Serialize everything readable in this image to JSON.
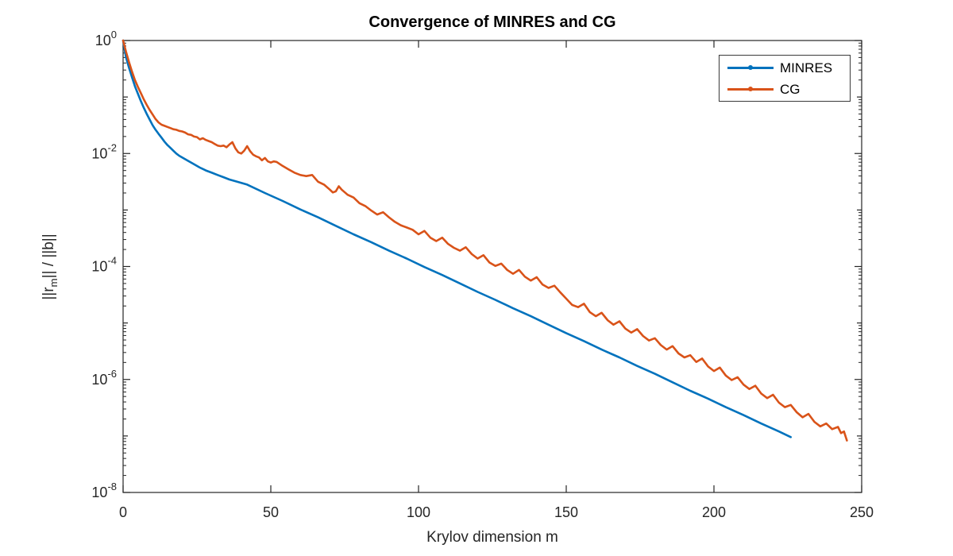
{
  "chart_data": {
    "type": "line",
    "title": "Convergence of MINRES and CG",
    "xlabel": "Krylov dimension m",
    "ylabel_parts": {
      "pre": "||r",
      "sub": "m",
      "post": "|| / ||b||"
    },
    "x_axis": {
      "min": 0,
      "max": 250,
      "ticks": [
        0,
        50,
        100,
        150,
        200,
        250
      ]
    },
    "y_axis": {
      "scale": "log10",
      "min_exp": -8,
      "max_exp": 0,
      "tick_exponents": [
        0,
        -2,
        -4,
        -6,
        -8
      ],
      "minor_ticks": true
    },
    "grid": false,
    "axis_color": "#262626",
    "background": "#ffffff",
    "legend": {
      "position": "northeast",
      "entries": [
        "MINRES",
        "CG"
      ]
    },
    "series": [
      {
        "name": "MINRES",
        "color": "#0072BD",
        "points_log10": [
          [
            0,
            0.0
          ],
          [
            1,
            -0.3
          ],
          [
            2,
            -0.48
          ],
          [
            3,
            -0.65
          ],
          [
            4,
            -0.81
          ],
          [
            5,
            -0.94
          ],
          [
            6,
            -1.07
          ],
          [
            7,
            -1.19
          ],
          [
            8,
            -1.3
          ],
          [
            9,
            -1.4
          ],
          [
            10,
            -1.5
          ],
          [
            11,
            -1.58
          ],
          [
            12,
            -1.65
          ],
          [
            13,
            -1.72
          ],
          [
            14,
            -1.79
          ],
          [
            15,
            -1.85
          ],
          [
            16,
            -1.9
          ],
          [
            17,
            -1.95
          ],
          [
            18,
            -2.0
          ],
          [
            19,
            -2.04
          ],
          [
            20,
            -2.07
          ],
          [
            22,
            -2.13
          ],
          [
            24,
            -2.19
          ],
          [
            26,
            -2.25
          ],
          [
            28,
            -2.3
          ],
          [
            30,
            -2.34
          ],
          [
            32,
            -2.38
          ],
          [
            34,
            -2.42
          ],
          [
            36,
            -2.46
          ],
          [
            38,
            -2.49
          ],
          [
            40,
            -2.52
          ],
          [
            42,
            -2.55
          ],
          [
            48,
            -2.7
          ],
          [
            54,
            -2.84
          ],
          [
            60,
            -2.99
          ],
          [
            66,
            -3.13
          ],
          [
            72,
            -3.28
          ],
          [
            78,
            -3.43
          ],
          [
            84,
            -3.57
          ],
          [
            90,
            -3.72
          ],
          [
            96,
            -3.86
          ],
          [
            102,
            -4.01
          ],
          [
            108,
            -4.15
          ],
          [
            114,
            -4.3
          ],
          [
            120,
            -4.45
          ],
          [
            126,
            -4.59
          ],
          [
            132,
            -4.74
          ],
          [
            138,
            -4.88
          ],
          [
            144,
            -5.03
          ],
          [
            150,
            -5.18
          ],
          [
            156,
            -5.32
          ],
          [
            162,
            -5.47
          ],
          [
            168,
            -5.61
          ],
          [
            174,
            -5.76
          ],
          [
            180,
            -5.9
          ],
          [
            186,
            -6.05
          ],
          [
            192,
            -6.2
          ],
          [
            198,
            -6.34
          ],
          [
            204,
            -6.49
          ],
          [
            210,
            -6.63
          ],
          [
            216,
            -6.78
          ],
          [
            222,
            -6.92
          ],
          [
            226,
            -7.02
          ]
        ]
      },
      {
        "name": "CG",
        "color": "#D95319",
        "points_log10": [
          [
            0,
            0.0
          ],
          [
            1,
            -0.2
          ],
          [
            2,
            -0.38
          ],
          [
            3,
            -0.55
          ],
          [
            4,
            -0.7
          ],
          [
            5,
            -0.82
          ],
          [
            6,
            -0.93
          ],
          [
            7,
            -1.04
          ],
          [
            8,
            -1.14
          ],
          [
            9,
            -1.23
          ],
          [
            10,
            -1.31
          ],
          [
            11,
            -1.39
          ],
          [
            12,
            -1.45
          ],
          [
            13,
            -1.49
          ],
          [
            14,
            -1.51
          ],
          [
            15,
            -1.53
          ],
          [
            16,
            -1.55
          ],
          [
            17,
            -1.57
          ],
          [
            18,
            -1.58
          ],
          [
            19,
            -1.6
          ],
          [
            20,
            -1.61
          ],
          [
            21,
            -1.63
          ],
          [
            22,
            -1.66
          ],
          [
            23,
            -1.67
          ],
          [
            24,
            -1.7
          ],
          [
            25,
            -1.71
          ],
          [
            26,
            -1.75
          ],
          [
            27,
            -1.73
          ],
          [
            28,
            -1.76
          ],
          [
            29,
            -1.78
          ],
          [
            30,
            -1.8
          ],
          [
            31,
            -1.83
          ],
          [
            32,
            -1.86
          ],
          [
            33,
            -1.87
          ],
          [
            34,
            -1.86
          ],
          [
            35,
            -1.89
          ],
          [
            36,
            -1.84
          ],
          [
            37,
            -1.8
          ],
          [
            38,
            -1.91
          ],
          [
            39,
            -1.98
          ],
          [
            40,
            -2.0
          ],
          [
            41,
            -1.95
          ],
          [
            42,
            -1.87
          ],
          [
            43,
            -1.96
          ],
          [
            44,
            -2.02
          ],
          [
            45,
            -2.05
          ],
          [
            46,
            -2.07
          ],
          [
            47,
            -2.12
          ],
          [
            48,
            -2.08
          ],
          [
            49,
            -2.14
          ],
          [
            50,
            -2.16
          ],
          [
            51,
            -2.14
          ],
          [
            52,
            -2.15
          ],
          [
            54,
            -2.22
          ],
          [
            56,
            -2.28
          ],
          [
            58,
            -2.34
          ],
          [
            60,
            -2.38
          ],
          [
            62,
            -2.4
          ],
          [
            64,
            -2.38
          ],
          [
            66,
            -2.5
          ],
          [
            68,
            -2.55
          ],
          [
            70,
            -2.64
          ],
          [
            71,
            -2.69
          ],
          [
            72,
            -2.67
          ],
          [
            73,
            -2.58
          ],
          [
            74,
            -2.64
          ],
          [
            76,
            -2.73
          ],
          [
            78,
            -2.78
          ],
          [
            80,
            -2.88
          ],
          [
            82,
            -2.93
          ],
          [
            84,
            -3.01
          ],
          [
            86,
            -3.08
          ],
          [
            88,
            -3.04
          ],
          [
            90,
            -3.13
          ],
          [
            92,
            -3.21
          ],
          [
            94,
            -3.27
          ],
          [
            96,
            -3.31
          ],
          [
            98,
            -3.35
          ],
          [
            100,
            -3.43
          ],
          [
            102,
            -3.37
          ],
          [
            104,
            -3.49
          ],
          [
            106,
            -3.55
          ],
          [
            108,
            -3.49
          ],
          [
            110,
            -3.6
          ],
          [
            112,
            -3.67
          ],
          [
            114,
            -3.72
          ],
          [
            116,
            -3.66
          ],
          [
            118,
            -3.78
          ],
          [
            120,
            -3.86
          ],
          [
            122,
            -3.8
          ],
          [
            124,
            -3.93
          ],
          [
            126,
            -3.99
          ],
          [
            128,
            -3.95
          ],
          [
            130,
            -4.06
          ],
          [
            132,
            -4.13
          ],
          [
            134,
            -4.06
          ],
          [
            136,
            -4.18
          ],
          [
            138,
            -4.25
          ],
          [
            140,
            -4.19
          ],
          [
            142,
            -4.32
          ],
          [
            144,
            -4.38
          ],
          [
            146,
            -4.34
          ],
          [
            148,
            -4.46
          ],
          [
            150,
            -4.57
          ],
          [
            152,
            -4.68
          ],
          [
            154,
            -4.72
          ],
          [
            156,
            -4.66
          ],
          [
            158,
            -4.81
          ],
          [
            160,
            -4.88
          ],
          [
            162,
            -4.82
          ],
          [
            164,
            -4.95
          ],
          [
            166,
            -5.03
          ],
          [
            168,
            -4.97
          ],
          [
            170,
            -5.1
          ],
          [
            172,
            -5.17
          ],
          [
            174,
            -5.11
          ],
          [
            176,
            -5.23
          ],
          [
            178,
            -5.31
          ],
          [
            180,
            -5.27
          ],
          [
            182,
            -5.39
          ],
          [
            184,
            -5.47
          ],
          [
            186,
            -5.41
          ],
          [
            188,
            -5.54
          ],
          [
            190,
            -5.61
          ],
          [
            192,
            -5.57
          ],
          [
            194,
            -5.69
          ],
          [
            196,
            -5.63
          ],
          [
            198,
            -5.77
          ],
          [
            200,
            -5.85
          ],
          [
            202,
            -5.79
          ],
          [
            204,
            -5.93
          ],
          [
            206,
            -6.01
          ],
          [
            208,
            -5.96
          ],
          [
            210,
            -6.09
          ],
          [
            212,
            -6.17
          ],
          [
            214,
            -6.11
          ],
          [
            216,
            -6.25
          ],
          [
            218,
            -6.33
          ],
          [
            220,
            -6.27
          ],
          [
            222,
            -6.41
          ],
          [
            224,
            -6.49
          ],
          [
            226,
            -6.45
          ],
          [
            228,
            -6.58
          ],
          [
            230,
            -6.67
          ],
          [
            232,
            -6.61
          ],
          [
            234,
            -6.75
          ],
          [
            236,
            -6.83
          ],
          [
            238,
            -6.78
          ],
          [
            240,
            -6.88
          ],
          [
            242,
            -6.84
          ],
          [
            243,
            -6.95
          ],
          [
            244,
            -6.92
          ],
          [
            245,
            -7.08
          ]
        ]
      }
    ]
  }
}
